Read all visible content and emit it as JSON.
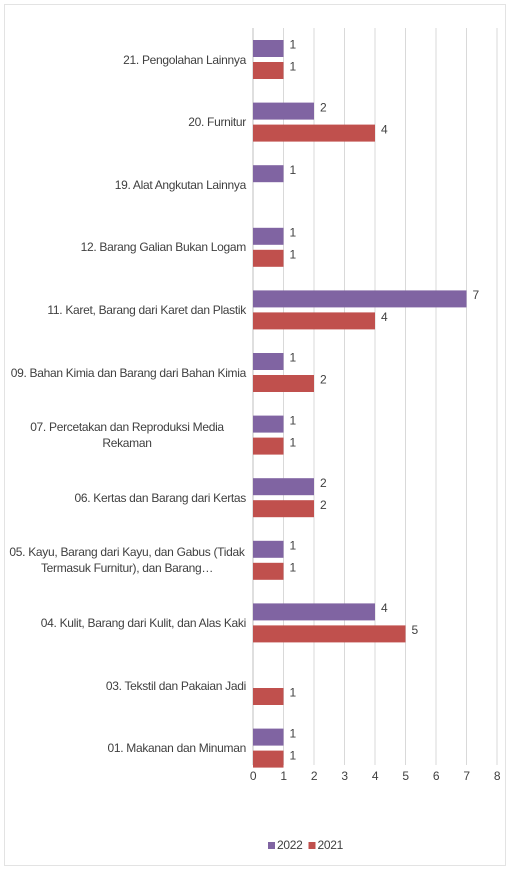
{
  "chart_data": {
    "type": "barh",
    "categories": [
      "21. Pengolahan Lainnya",
      "20. Furnitur",
      "19. Alat Angkutan Lainnya",
      "12. Barang Galian Bukan Logam",
      "11. Karet, Barang dari Karet dan Plastik",
      "09. Bahan Kimia dan Barang dari Bahan Kimia",
      "07. Percetakan dan Reproduksi Media Rekaman",
      "06. Kertas dan Barang dari Kertas",
      "05. Kayu, Barang dari Kayu, dan Gabus (Tidak Termasuk Furnitur), dan Barang…",
      "04. Kulit, Barang dari Kulit, dan Alas Kaki",
      "03. Tekstil dan Pakaian Jadi",
      "01. Makanan dan Minuman"
    ],
    "series": [
      {
        "name": "2022",
        "color": "#8064a2",
        "values": [
          1,
          2,
          1,
          1,
          7,
          1,
          1,
          2,
          1,
          4,
          null,
          1
        ]
      },
      {
        "name": "2021",
        "color": "#c0504d",
        "values": [
          1,
          4,
          null,
          1,
          4,
          2,
          1,
          2,
          1,
          5,
          1,
          1
        ]
      }
    ],
    "xlim": [
      0,
      8
    ],
    "xticks": [
      0,
      1,
      2,
      3,
      4,
      5,
      6,
      7,
      8
    ],
    "grid": true,
    "legend": "bottom"
  }
}
